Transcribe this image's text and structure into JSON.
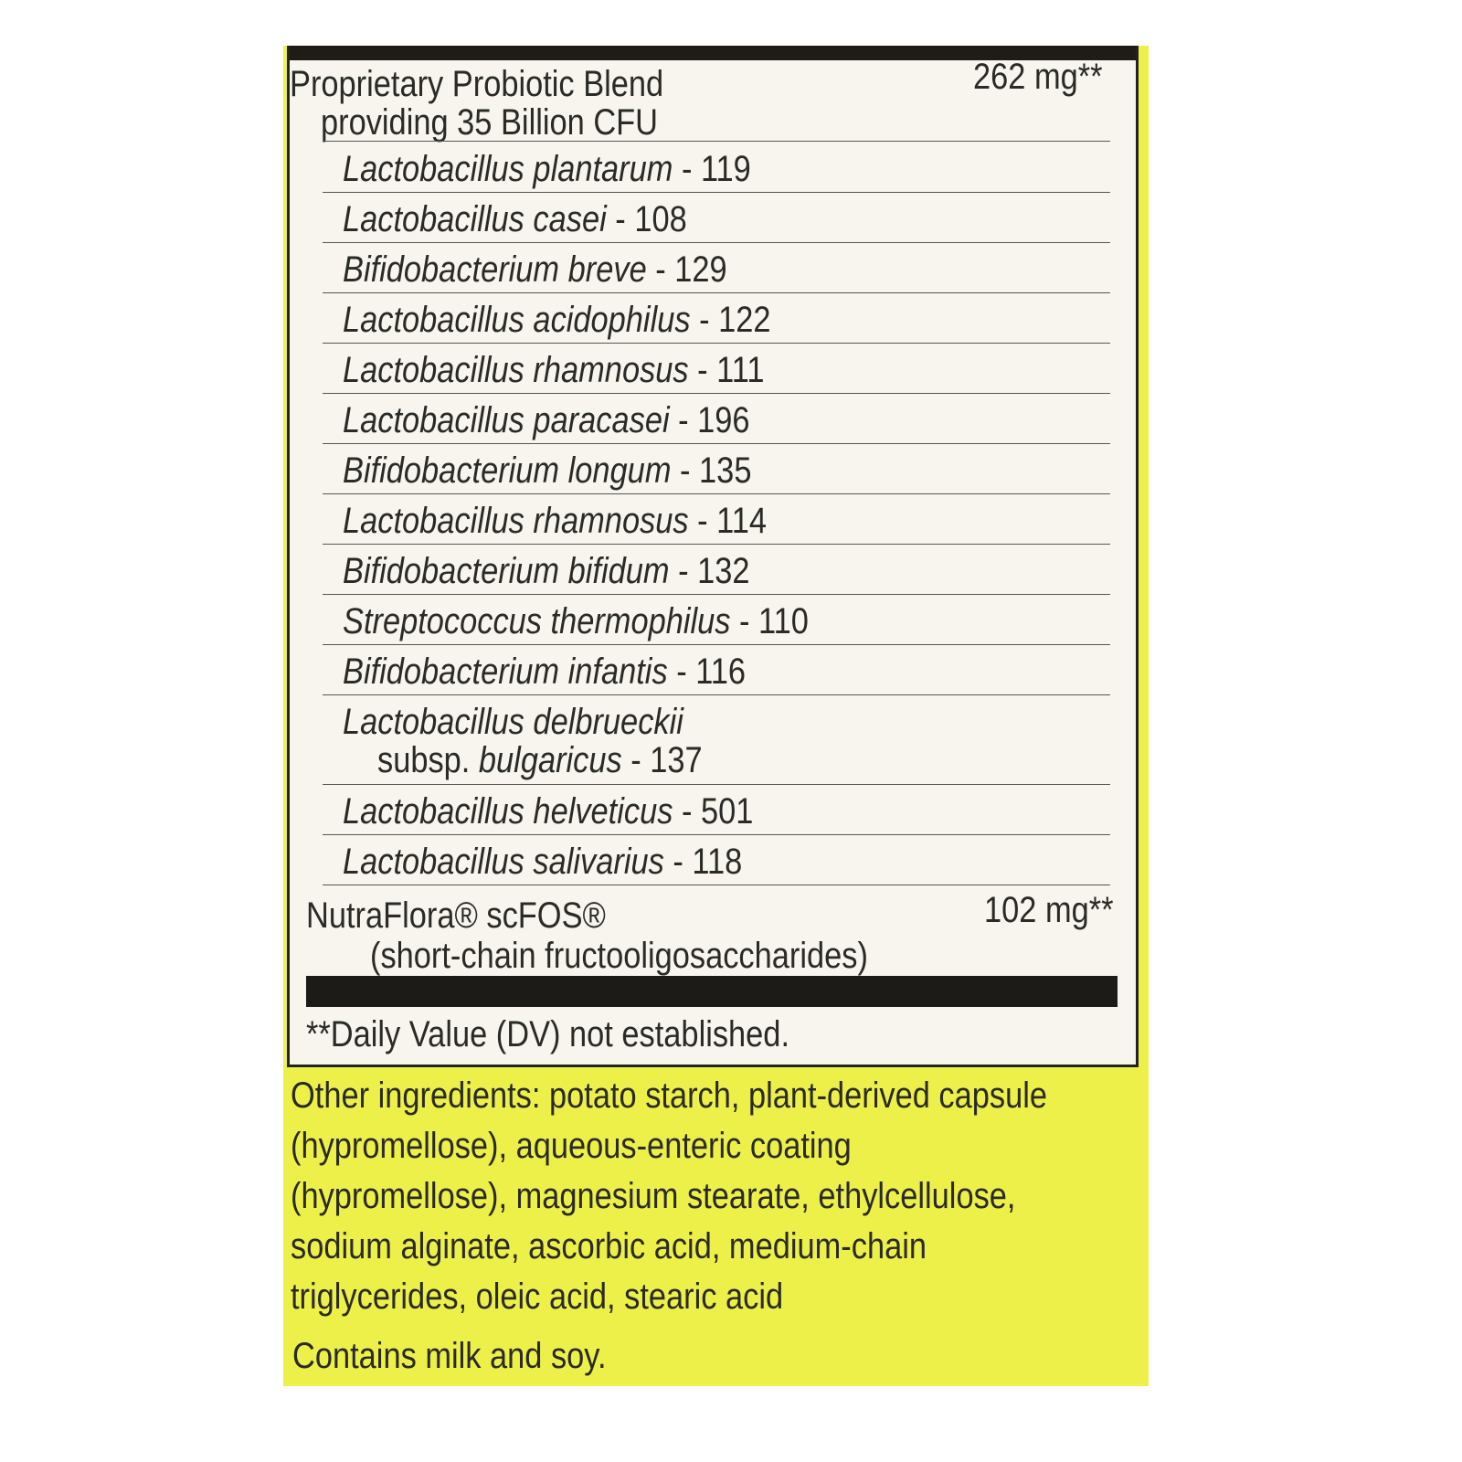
{
  "label": {
    "blend": {
      "name_line1": "Proprietary Probiotic Blend",
      "name_line2": "providing 35 Billion CFU",
      "amount": "262 mg**"
    },
    "strains": [
      {
        "name": "Lactobacillus plantarum",
        "code": " - 119"
      },
      {
        "name": "Lactobacillus casei",
        "code": " - 108"
      },
      {
        "name": "Bifidobacterium breve",
        "code": " - 129"
      },
      {
        "name": "Lactobacillus acidophilus",
        "code": " - 122"
      },
      {
        "name": "Lactobacillus rhamnosus",
        "code": " - 111"
      },
      {
        "name": "Lactobacillus paracasei",
        "code": " - 196"
      },
      {
        "name": "Bifidobacterium longum",
        "code": " - 135"
      },
      {
        "name": "Lactobacillus rhamnosus",
        "code": " - 114"
      },
      {
        "name": "Bifidobacterium bifidum",
        "code": " - 132"
      },
      {
        "name": "Streptococcus thermophilus",
        "code": " - 110"
      },
      {
        "name": "Bifidobacterium infantis",
        "code": " - 116"
      }
    ],
    "delbrueckii": {
      "line1": "Lactobacillus delbrueckii",
      "prefix": "subsp. ",
      "subsp": "bulgaricus",
      "code": " - 137"
    },
    "strains_after": [
      {
        "name": "Lactobacillus helveticus",
        "code": " - 501"
      },
      {
        "name": "Lactobacillus salivarius",
        "code": " - 118"
      }
    ],
    "fos": {
      "name_line1": "NutraFlora® scFOS®",
      "name_line2": "(short-chain fructooligosaccharides)",
      "amount": "102 mg**"
    },
    "footnote": "**Daily Value (DV) not established.",
    "other_ingredients": "Other ingredients: potato starch, plant-derived capsule (hypromellose), aqueous-enteric coating (hypromellose), magnesium stearate, ethylcellulose, sodium alginate, ascorbic acid, medium-chain triglycerides, oleic acid, stearic acid",
    "contains": "Contains milk and soy."
  },
  "colors": {
    "panel": "#eef04a",
    "box": "#f7f5ee",
    "bar": "#1f1c18"
  }
}
